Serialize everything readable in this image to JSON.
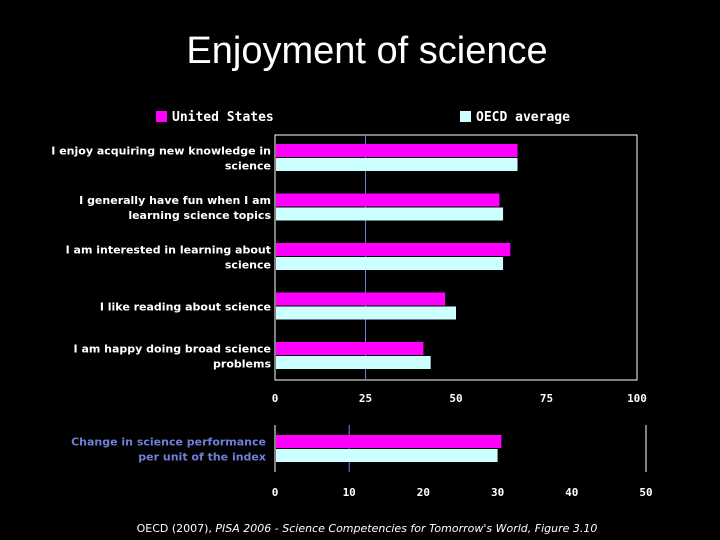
{
  "title": "Enjoyment of science",
  "source": {
    "prefix": "OECD (2007), ",
    "italic": "PISA 2006 - Science Competencies for Tomorrow's World, Figure 3.10"
  },
  "colors": {
    "us": "#ff00ff",
    "oecd": "#ccffff",
    "axis": "#ffffff",
    "refline": "#6f7fd8"
  },
  "chart_data": [
    {
      "type": "bar",
      "orientation": "horizontal",
      "categories": [
        [
          "I enjoy acquiring new knowledge in",
          "science"
        ],
        [
          "I generally have fun when I am",
          "learning science topics"
        ],
        [
          "I am interested in learning about",
          "science"
        ],
        [
          "I like reading about science"
        ],
        [
          "I am happy doing broad science",
          "problems"
        ]
      ],
      "series": [
        {
          "name": "United States",
          "values": [
            67,
            62,
            65,
            47,
            41
          ]
        },
        {
          "name": "OECD average",
          "values": [
            67,
            63,
            63,
            50,
            43
          ]
        }
      ],
      "xlim": [
        0,
        100
      ],
      "xticks": [
        "0",
        "25",
        "50",
        "75",
        "100"
      ],
      "reference_line": 25,
      "legend": "top"
    },
    {
      "type": "bar",
      "orientation": "horizontal",
      "categories": [
        [
          "Change in science performance",
          "per unit of the index"
        ]
      ],
      "series": [
        {
          "name": "United States",
          "values": [
            30.5
          ]
        },
        {
          "name": "OECD average",
          "values": [
            30
          ]
        }
      ],
      "xlim": [
        0,
        50
      ],
      "xticks": [
        "0",
        "10",
        "20",
        "30",
        "40",
        "50"
      ],
      "reference_line": 10
    }
  ]
}
